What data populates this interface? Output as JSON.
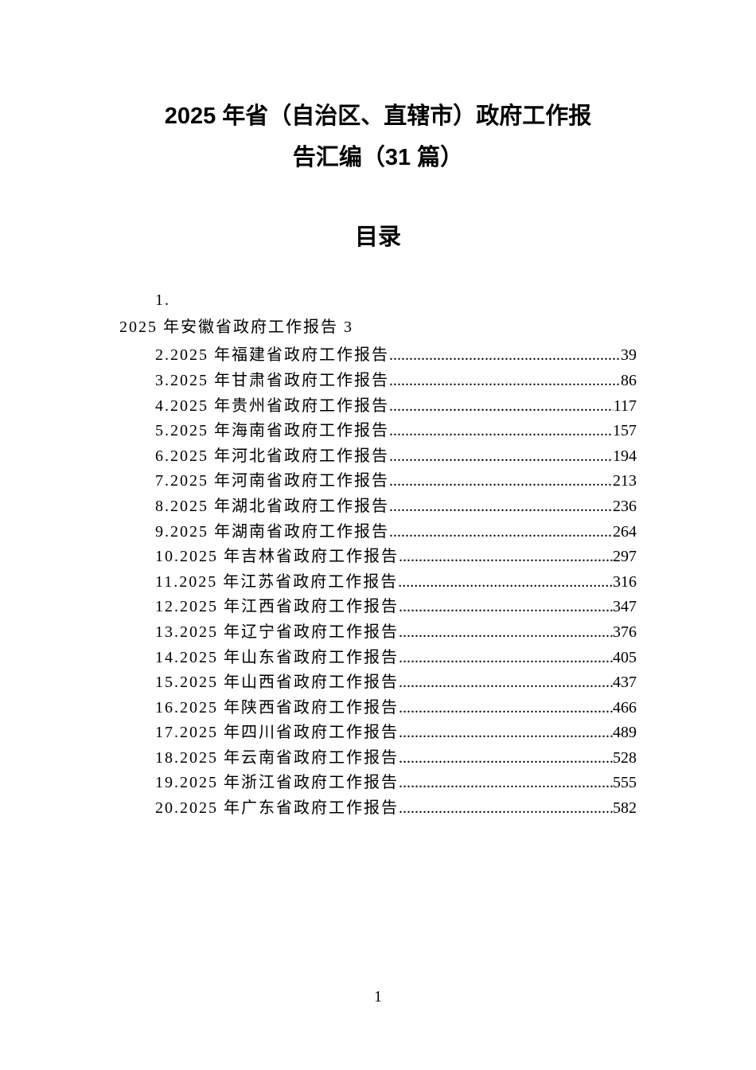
{
  "title": {
    "line1": "2025 年省（自治区、直辖市）政府工作报",
    "line2": "告汇编（31 篇）"
  },
  "section_heading": "目录",
  "first_item": {
    "number": "1.",
    "text": "2025 年安徽省政府工作报告 3"
  },
  "toc_items": [
    {
      "label": "2.2025 年福建省政府工作报告",
      "page": "39"
    },
    {
      "label": "3.2025 年甘肃省政府工作报告",
      "page": "86"
    },
    {
      "label": "4.2025 年贵州省政府工作报告",
      "page": "117"
    },
    {
      "label": "5.2025 年海南省政府工作报告",
      "page": "157"
    },
    {
      "label": "6.2025 年河北省政府工作报告",
      "page": "194"
    },
    {
      "label": "7.2025 年河南省政府工作报告",
      "page": "213"
    },
    {
      "label": "8.2025 年湖北省政府工作报告",
      "page": "236"
    },
    {
      "label": "9.2025 年湖南省政府工作报告",
      "page": "264"
    },
    {
      "label": "10.2025 年吉林省政府工作报告",
      "page": "297"
    },
    {
      "label": "11.2025 年江苏省政府工作报告",
      "page": "316"
    },
    {
      "label": "12.2025 年江西省政府工作报告",
      "page": "347"
    },
    {
      "label": "13.2025 年辽宁省政府工作报告",
      "page": "376"
    },
    {
      "label": "14.2025 年山东省政府工作报告",
      "page": "405"
    },
    {
      "label": "15.2025 年山西省政府工作报告",
      "page": "437"
    },
    {
      "label": "16.2025 年陕西省政府工作报告",
      "page": "466"
    },
    {
      "label": "17.2025 年四川省政府工作报告",
      "page": "489"
    },
    {
      "label": "18.2025 年云南省政府工作报告",
      "page": "528"
    },
    {
      "label": "19.2025 年浙江省政府工作报告",
      "page": "555"
    },
    {
      "label": "20.2025 年广东省政府工作报告",
      "page": "582"
    }
  ],
  "page_number": "1",
  "colors": {
    "background": "#ffffff",
    "text": "#000000"
  },
  "typography": {
    "title_fontsize": 29,
    "body_fontsize": 20,
    "title_font": "SimHei",
    "body_font": "SimSun"
  }
}
